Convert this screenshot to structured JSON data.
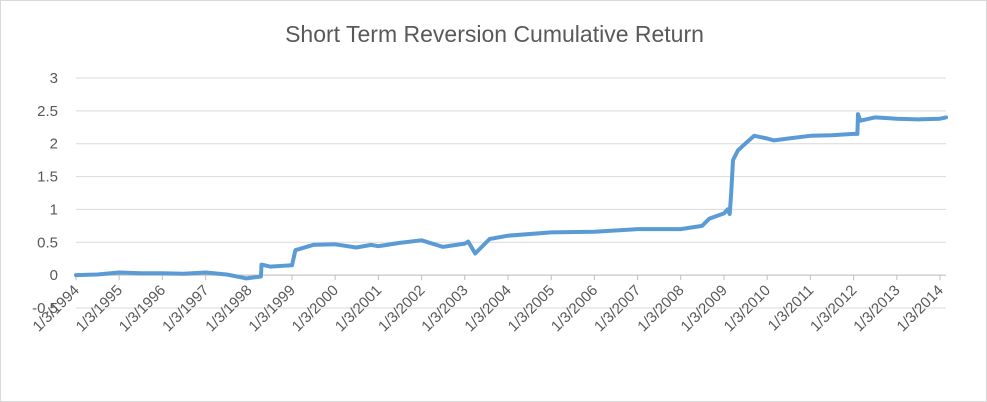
{
  "chart_data": {
    "type": "line",
    "title": "Short Term Reversion Cumulative Return",
    "xlabel": "",
    "ylabel": "",
    "ylim": [
      -0.5,
      3
    ],
    "yticks": [
      "-0.5",
      "0",
      "0.5",
      "1",
      "1.5",
      "2",
      "2.5",
      "3"
    ],
    "xticks": [
      "1/3/1994",
      "1/3/1995",
      "1/3/1996",
      "1/3/1997",
      "1/3/1998",
      "1/3/1999",
      "1/3/2000",
      "1/3/2001",
      "1/3/2002",
      "1/3/2003",
      "1/3/2004",
      "1/3/2005",
      "1/3/2006",
      "1/3/2007",
      "1/3/2008",
      "1/3/2009",
      "1/3/2010",
      "1/3/2011",
      "1/3/2012",
      "1/3/2013",
      "1/3/2014"
    ],
    "xlim": [
      "1994-01-03",
      "2014-01-03"
    ],
    "grid": true,
    "legend": "none",
    "series": [
      {
        "color": "#5b9bd5",
        "points": [
          [
            "1994-01-03",
            0.0
          ],
          [
            "1994-07-01",
            0.01
          ],
          [
            "1995-01-03",
            0.04
          ],
          [
            "1995-07-01",
            0.03
          ],
          [
            "1996-01-03",
            0.03
          ],
          [
            "1996-07-01",
            0.02
          ],
          [
            "1997-01-03",
            0.04
          ],
          [
            "1997-07-01",
            0.01
          ],
          [
            "1997-12-15",
            -0.05
          ],
          [
            "1998-04-15",
            -0.02
          ],
          [
            "1998-04-20",
            0.16
          ],
          [
            "1998-07-01",
            0.13
          ],
          [
            "1999-01-03",
            0.15
          ],
          [
            "1999-02-01",
            0.38
          ],
          [
            "1999-07-01",
            0.46
          ],
          [
            "2000-01-03",
            0.47
          ],
          [
            "2000-07-01",
            0.42
          ],
          [
            "2000-11-01",
            0.46
          ],
          [
            "2001-01-03",
            0.44
          ],
          [
            "2001-07-01",
            0.49
          ],
          [
            "2002-01-03",
            0.53
          ],
          [
            "2002-07-01",
            0.43
          ],
          [
            "2003-01-03",
            0.48
          ],
          [
            "2003-02-01",
            0.51
          ],
          [
            "2003-04-01",
            0.33
          ],
          [
            "2003-08-01",
            0.55
          ],
          [
            "2004-01-03",
            0.6
          ],
          [
            "2005-01-03",
            0.65
          ],
          [
            "2006-01-03",
            0.66
          ],
          [
            "2007-01-03",
            0.7
          ],
          [
            "2008-01-03",
            0.7
          ],
          [
            "2008-07-01",
            0.75
          ],
          [
            "2008-09-01",
            0.86
          ],
          [
            "2009-01-03",
            0.94
          ],
          [
            "2009-02-01",
            1.0
          ],
          [
            "2009-02-20",
            0.93
          ],
          [
            "2009-03-05",
            1.25
          ],
          [
            "2009-03-20",
            1.75
          ],
          [
            "2009-05-01",
            1.9
          ],
          [
            "2009-07-01",
            2.0
          ],
          [
            "2009-09-15",
            2.12
          ],
          [
            "2010-01-03",
            2.08
          ],
          [
            "2010-03-01",
            2.05
          ],
          [
            "2010-07-01",
            2.08
          ],
          [
            "2011-01-03",
            2.12
          ],
          [
            "2011-07-01",
            2.13
          ],
          [
            "2012-01-03",
            2.15
          ],
          [
            "2012-02-05",
            2.15
          ],
          [
            "2012-02-10",
            2.45
          ],
          [
            "2012-03-01",
            2.35
          ],
          [
            "2012-07-01",
            2.4
          ],
          [
            "2013-01-03",
            2.38
          ],
          [
            "2013-07-01",
            2.37
          ],
          [
            "2014-01-03",
            2.38
          ],
          [
            "2014-07-01",
            2.4
          ],
          [
            "2015-01-03",
            2.4
          ]
        ]
      }
    ]
  }
}
